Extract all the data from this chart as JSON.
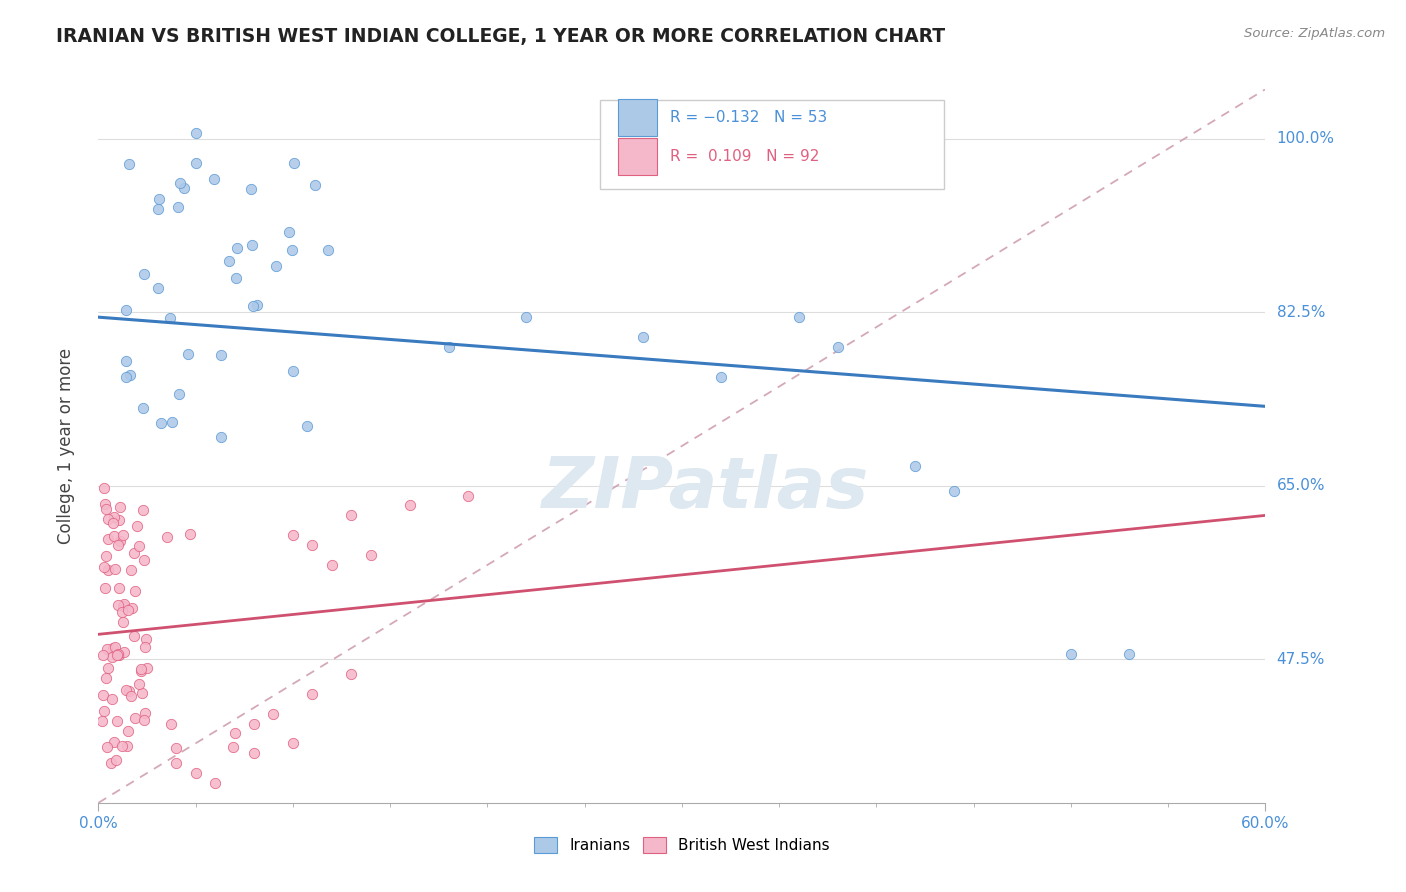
{
  "title": "IRANIAN VS BRITISH WEST INDIAN COLLEGE, 1 YEAR OR MORE CORRELATION CHART",
  "source_text": "Source: ZipAtlas.com",
  "ylabel": "College, 1 year or more",
  "xlim": [
    0.0,
    0.6
  ],
  "ylim": [
    0.33,
    1.05
  ],
  "yticks": [
    0.475,
    0.65,
    0.825,
    1.0
  ],
  "yticklabels": [
    "47.5%",
    "65.0%",
    "82.5%",
    "100.0%"
  ],
  "iranian_fill": "#adc9e8",
  "iranian_edge": "#5b9bd5",
  "bwi_fill": "#f5b8cb",
  "bwi_edge": "#e06080",
  "iranian_line_color": "#3a7abf",
  "bwi_line_color": "#d05070",
  "ref_line_color": "#d0a0b0",
  "grid_color": "#dddddd",
  "watermark_color": "#dde8f0",
  "legend_R_iranian": "-0.132",
  "legend_N_iranian": "53",
  "legend_R_bwi": "0.109",
  "legend_N_bwi": "92",
  "tick_color": "#4a90d9",
  "title_color": "#222222",
  "ylabel_color": "#444444"
}
